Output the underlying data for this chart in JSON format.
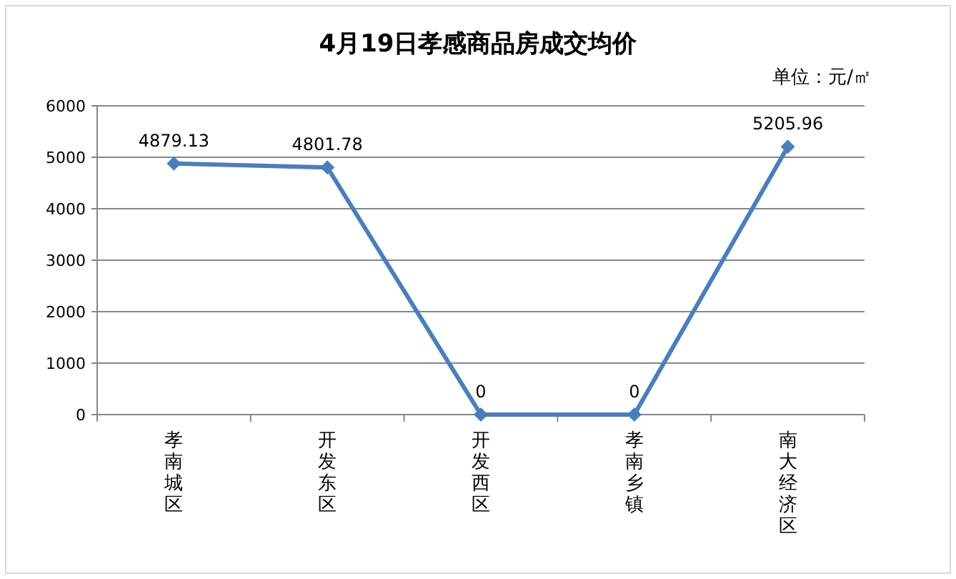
{
  "chart_data": {
    "type": "line",
    "title": "4月19日孝感商品房成交均价",
    "annotations": [
      "单位：元/㎡"
    ],
    "categories": [
      "孝南城区",
      "开发东区",
      "开发西区",
      "孝南乡镇",
      "南大经济区"
    ],
    "series": [
      {
        "color": "#4a7ebb",
        "values": [
          4879.13,
          4801.78,
          0,
          0,
          5205.96
        ]
      }
    ],
    "ylim": [
      0,
      6000
    ],
    "yticks": [
      0,
      1000,
      2000,
      3000,
      4000,
      5000,
      6000
    ],
    "grid": "y",
    "marker": "diamond",
    "data_labels": true
  }
}
